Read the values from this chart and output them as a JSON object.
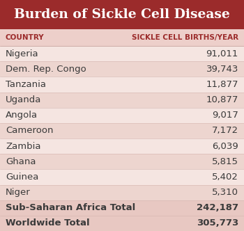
{
  "title": "Burden of Sickle Cell Disease",
  "col1_header": "COUNTRY",
  "col2_header": "SICKLE CELL BIRTHS/YEAR",
  "rows": [
    [
      "Nigeria",
      "91,011"
    ],
    [
      "Dem. Rep. Congo",
      "39,743"
    ],
    [
      "Tanzania",
      "11,877"
    ],
    [
      "Uganda",
      "10,877"
    ],
    [
      "Angola",
      "9,017"
    ],
    [
      "Cameroon",
      "7,172"
    ],
    [
      "Zambia",
      "6,039"
    ],
    [
      "Ghana",
      "5,815"
    ],
    [
      "Guinea",
      "5,402"
    ],
    [
      "Niger",
      "5,310"
    ],
    [
      "Sub-Saharan Africa Total",
      "242,187"
    ],
    [
      "Worldwide Total",
      "305,773"
    ]
  ],
  "title_bg_color": "#9B2B2B",
  "header_bg_color": "#EDCFCA",
  "row_color": "#F5E5E1",
  "row_alt_color": "#EDD5CF",
  "title_text_color": "#FFFFFF",
  "header_text_color": "#9B2B2B",
  "row_text_color": "#3A3A3A",
  "total_row_bg_color": "#E8C8C2",
  "outer_bg_color": "#F5E5E1",
  "title_fontsize": 13.5,
  "header_fontsize": 7.5,
  "row_fontsize": 9.5
}
